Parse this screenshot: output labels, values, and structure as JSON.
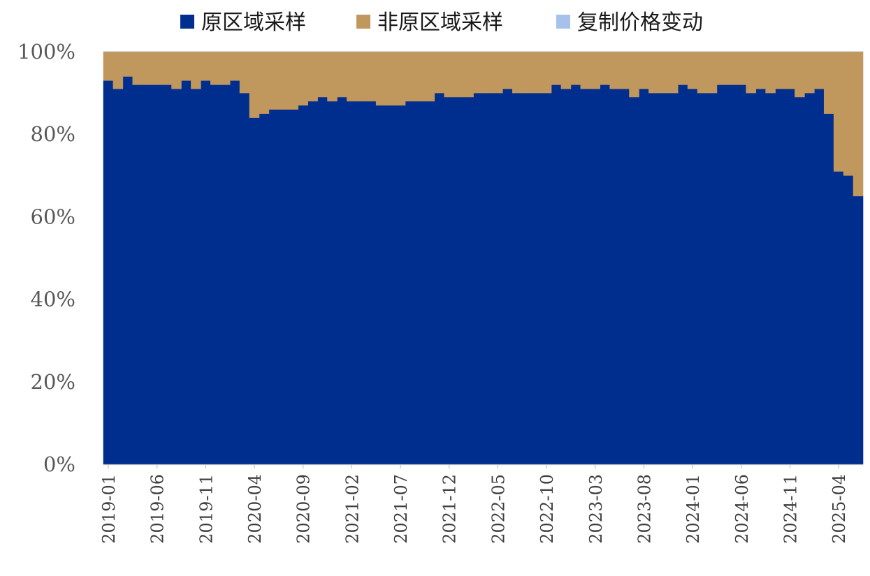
{
  "chart_data": {
    "type": "area",
    "stacked": "percent",
    "grid": false,
    "legend_position": "top",
    "ylim": [
      0,
      100
    ],
    "y_ticks": [
      "0%",
      "20%",
      "40%",
      "60%",
      "80%",
      "100%"
    ],
    "x_tick_labels": [
      "2019-01",
      "2019-06",
      "2019-11",
      "2020-04",
      "2020-09",
      "2021-02",
      "2021-07",
      "2021-12",
      "2022-05",
      "2022-10",
      "2023-03",
      "2023-08",
      "2024-01",
      "2024-06",
      "2024-11",
      "2025-04"
    ],
    "x_start": "2019-01",
    "x_end": "2025-06",
    "series": [
      {
        "name": "原区域采样",
        "color": "#002E8F",
        "values": [
          93,
          91,
          94,
          92,
          92,
          92,
          92,
          91,
          93,
          91,
          93,
          92,
          92,
          93,
          90,
          84,
          85,
          86,
          86,
          86,
          87,
          88,
          89,
          88,
          89,
          88,
          88,
          88,
          87,
          87,
          87,
          88,
          88,
          88,
          90,
          89,
          89,
          89,
          90,
          90,
          90,
          91,
          90,
          90,
          90,
          90,
          92,
          91,
          92,
          91,
          91,
          92,
          91,
          91,
          89,
          91,
          90,
          90,
          90,
          92,
          91,
          90,
          90,
          92,
          92,
          92,
          90,
          91,
          90,
          91,
          91,
          89,
          90,
          91,
          85,
          71,
          70,
          65
        ]
      },
      {
        "name": "非原区域采样",
        "color": "#C0975C",
        "values": [
          7,
          9,
          6,
          8,
          8,
          8,
          8,
          9,
          7,
          9,
          7,
          8,
          8,
          7,
          10,
          16,
          15,
          14,
          14,
          14,
          13,
          12,
          11,
          12,
          11,
          12,
          12,
          12,
          13,
          13,
          13,
          12,
          12,
          12,
          10,
          11,
          11,
          11,
          10,
          10,
          10,
          9,
          10,
          10,
          10,
          10,
          8,
          9,
          8,
          9,
          9,
          8,
          9,
          9,
          11,
          9,
          10,
          10,
          10,
          8,
          9,
          10,
          10,
          8,
          8,
          8,
          10,
          9,
          10,
          9,
          9,
          11,
          10,
          9,
          15,
          29,
          30,
          35
        ]
      },
      {
        "name": "复制价格变动",
        "color": "#A6C2EA",
        "values": [
          0,
          0,
          0,
          0,
          0,
          0,
          0,
          0,
          0,
          0,
          0,
          0,
          0,
          0,
          0,
          0,
          0,
          0,
          0,
          0,
          0,
          0,
          0,
          0,
          0,
          0,
          0,
          0,
          0,
          0,
          0,
          0,
          0,
          0,
          0,
          0,
          0,
          0,
          0,
          0,
          0,
          0,
          0,
          0,
          0,
          0,
          0,
          0,
          0,
          0,
          0,
          0,
          0,
          0,
          0,
          0,
          0,
          0,
          0,
          0,
          0,
          0,
          0,
          0,
          0,
          0,
          0,
          0,
          0,
          0,
          0,
          0,
          0,
          0,
          0,
          0,
          0,
          0
        ]
      }
    ]
  }
}
